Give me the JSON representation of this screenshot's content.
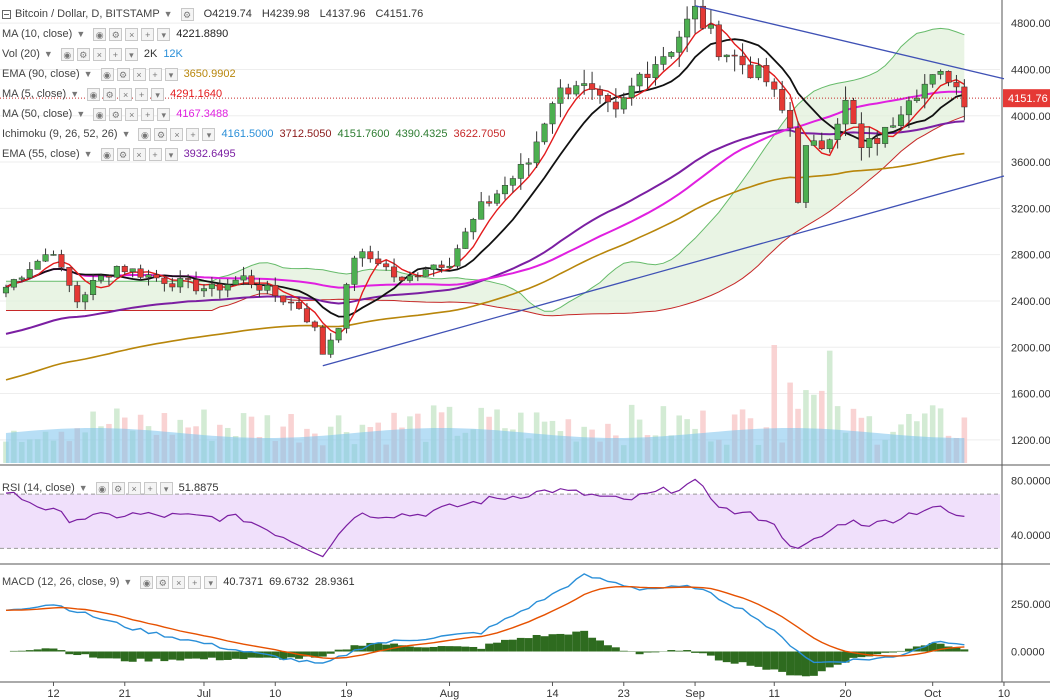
{
  "symbol": {
    "title": "Bitcoin / Dollar, D, BITSTAMP",
    "open": "O4219.74",
    "high": "H4239.98",
    "low": "L4137.96",
    "close": "C4151.76",
    "last_price_label": "4151.76"
  },
  "indicators": [
    {
      "label": "MA (10, close)",
      "values": [
        "4221.8890"
      ],
      "colors": [
        "#222222"
      ]
    },
    {
      "label": "Vol (20)",
      "values": [
        "2K",
        "12K"
      ],
      "colors": [
        "#333333",
        "#2a8fd8"
      ]
    },
    {
      "label": "EMA (90, close)",
      "values": [
        "3650.9902"
      ],
      "colors": [
        "#b8860b"
      ]
    },
    {
      "label": "MA (5, close)",
      "values": [
        "4291.1640"
      ],
      "colors": [
        "#e31a1c"
      ]
    },
    {
      "label": "MA (50, close)",
      "values": [
        "4167.3488"
      ],
      "colors": [
        "#e020e0"
      ]
    },
    {
      "label": "Ichimoku (9, 26, 52, 26)",
      "values": [
        "4161.5000",
        "3712.5050",
        "4151.7600",
        "4390.4325",
        "3622.7050"
      ],
      "colors": [
        "#2a8fd8",
        "#8b1a1a",
        "#2e7d32",
        "#2e7d32",
        "#c62828"
      ]
    },
    {
      "label": "EMA (55, close)",
      "values": [
        "3932.6495"
      ],
      "colors": [
        "#7b1fa2"
      ]
    }
  ],
  "rsi_legend": {
    "label": "RSI (14, close)",
    "value": "51.8875",
    "color": "#7b1fa2"
  },
  "macd_legend": {
    "label": "MACD (12, 26, close, 9)",
    "values": [
      "40.7371",
      "69.6732",
      "28.9361"
    ],
    "colors": [
      "#2e7d32",
      "#2a8fd8",
      "#e65100"
    ]
  },
  "axes": {
    "price_ticks": [
      "4800.00",
      "4400.00",
      "4000.00",
      "3600.00",
      "3200.00",
      "2800.00",
      "2400.00",
      "2000.00",
      "1600.00",
      "1200.00"
    ],
    "rsi_ticks": [
      "80.0000",
      "40.0000"
    ],
    "macd_ticks": [
      "250.0000",
      "0.0000"
    ],
    "x_ticks": [
      "12",
      "21",
      "Jul",
      "10",
      "19",
      "Aug",
      "14",
      "23",
      "Sep",
      "11",
      "20",
      "Oct",
      "10"
    ]
  },
  "colors": {
    "bull": "#4caf50",
    "bear": "#e53935",
    "grid": "#eeeeee",
    "trendline": "#3f51b5",
    "last_price_bg": "#e53935",
    "rsi_band": "#f0e0fb",
    "volume": "#7cc3ec",
    "macd_hist": "#2e6b1f"
  },
  "chart_data": {
    "type": "candlestick",
    "price_axis": {
      "min": 1000,
      "max": 5000,
      "ticks": [
        1200,
        1600,
        2000,
        2400,
        2800,
        3200,
        3600,
        4000,
        4400,
        4800
      ]
    },
    "x_axis": {
      "start": "2017-06-06",
      "end": "2017-10-10"
    },
    "anchors_close": [
      [
        "2017-06-06",
        2520
      ],
      [
        "2017-06-09",
        2700
      ],
      [
        "2017-06-12",
        2850
      ],
      [
        "2017-06-13",
        2650
      ],
      [
        "2017-06-15",
        2400
      ],
      [
        "2017-06-17",
        2550
      ],
      [
        "2017-06-20",
        2700
      ],
      [
        "2017-06-25",
        2600
      ],
      [
        "2017-06-28",
        2550
      ],
      [
        "2017-07-02",
        2500
      ],
      [
        "2017-07-06",
        2600
      ],
      [
        "2017-07-10",
        2450
      ],
      [
        "2017-07-13",
        2350
      ],
      [
        "2017-07-15",
        2150
      ],
      [
        "2017-07-16",
        1950
      ],
      [
        "2017-07-18",
        2200
      ],
      [
        "2017-07-20",
        2800
      ],
      [
        "2017-07-23",
        2750
      ],
      [
        "2017-07-26",
        2550
      ],
      [
        "2017-07-29",
        2700
      ],
      [
        "2017-08-01",
        2750
      ],
      [
        "2017-08-05",
        3200
      ],
      [
        "2017-08-08",
        3400
      ],
      [
        "2017-08-11",
        3600
      ],
      [
        "2017-08-14",
        4150
      ],
      [
        "2017-08-17",
        4300
      ],
      [
        "2017-08-20",
        4100
      ],
      [
        "2017-08-22",
        4000
      ],
      [
        "2017-08-25",
        4350
      ],
      [
        "2017-08-29",
        4600
      ],
      [
        "2017-09-01",
        4900
      ],
      [
        "2017-09-04",
        4600
      ],
      [
        "2017-09-06",
        4500
      ],
      [
        "2017-09-10",
        4300
      ],
      [
        "2017-09-13",
        3900
      ],
      [
        "2017-09-14",
        3300
      ],
      [
        "2017-09-15",
        3700
      ],
      [
        "2017-09-17",
        3750
      ],
      [
        "2017-09-20",
        4100
      ],
      [
        "2017-09-22",
        3700
      ],
      [
        "2017-09-25",
        3850
      ],
      [
        "2017-09-28",
        4200
      ],
      [
        "2017-10-01",
        4300
      ],
      [
        "2017-10-03",
        4350
      ],
      [
        "2017-10-05",
        4150
      ]
    ],
    "annotations": {
      "upper_trendline": {
        "from": [
          "2017-09-01",
          4950
        ],
        "to": [
          "2017-10-10",
          4320
        ]
      },
      "lower_trendline": {
        "from": [
          "2017-07-16",
          1840
        ],
        "to": [
          "2017-10-10",
          3480
        ]
      }
    },
    "sub_panels": {
      "rsi": {
        "min": 20,
        "max": 90,
        "anchors": [
          [
            "2017-06-06",
            72
          ],
          [
            "2017-06-14",
            52
          ],
          [
            "2017-06-22",
            55
          ],
          [
            "2017-07-06",
            52
          ],
          [
            "2017-07-16",
            26
          ],
          [
            "2017-07-20",
            55
          ],
          [
            "2017-07-28",
            55
          ],
          [
            "2017-08-05",
            65
          ],
          [
            "2017-08-14",
            73
          ],
          [
            "2017-08-18",
            70
          ],
          [
            "2017-08-23",
            65
          ],
          [
            "2017-09-01",
            78
          ],
          [
            "2017-09-05",
            58
          ],
          [
            "2017-09-10",
            52
          ],
          [
            "2017-09-14",
            28
          ],
          [
            "2017-09-20",
            50
          ],
          [
            "2017-09-24",
            48
          ],
          [
            "2017-10-01",
            61
          ],
          [
            "2017-10-05",
            52
          ]
        ]
      },
      "macd": {
        "min": -150,
        "max": 450,
        "anchors": [
          [
            "2017-06-06",
            220
          ],
          [
            "2017-06-12",
            250
          ],
          [
            "2017-06-22",
            120
          ],
          [
            "2017-07-06",
            0
          ],
          [
            "2017-07-16",
            -70
          ],
          [
            "2017-07-22",
            40
          ],
          [
            "2017-08-05",
            100
          ],
          [
            "2017-08-14",
            300
          ],
          [
            "2017-08-18",
            400
          ],
          [
            "2017-08-25",
            330
          ],
          [
            "2017-09-01",
            340
          ],
          [
            "2017-09-08",
            200
          ],
          [
            "2017-09-16",
            -60
          ],
          [
            "2017-09-26",
            -30
          ],
          [
            "2017-10-02",
            60
          ],
          [
            "2017-10-05",
            40
          ]
        ]
      }
    }
  }
}
